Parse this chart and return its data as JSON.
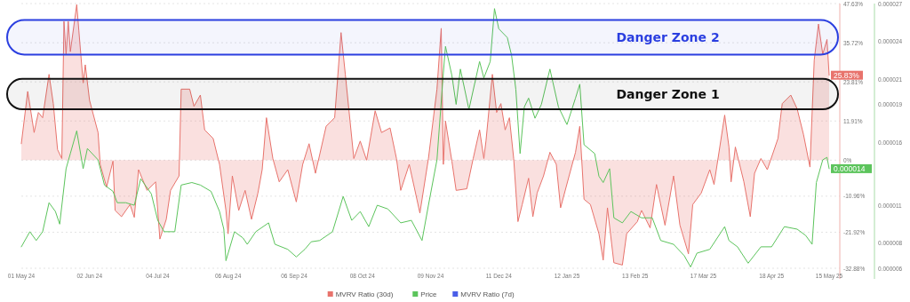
{
  "chart_data": {
    "type": "area",
    "xlim": [
      "2024-05-01",
      "2025-05-20"
    ],
    "xticks": [
      {
        "value": "2024-05-01",
        "label": "01 May 24"
      },
      {
        "value": "2024-06-02",
        "label": "02 Jun 24"
      },
      {
        "value": "2024-07-04",
        "label": "04 Jul 24"
      },
      {
        "value": "2024-08-06",
        "label": "06 Aug 24"
      },
      {
        "value": "2024-09-06",
        "label": "06 Sep 24"
      },
      {
        "value": "2024-10-08",
        "label": "08 Oct 24"
      },
      {
        "value": "2024-11-09",
        "label": "09 Nov 24"
      },
      {
        "value": "2024-12-11",
        "label": "11 Dec 24"
      },
      {
        "value": "2025-01-12",
        "label": "12 Jan 25"
      },
      {
        "value": "2025-02-13",
        "label": "13 Feb 25"
      },
      {
        "value": "2025-03-17",
        "label": "17 Mar 25"
      },
      {
        "value": "2025-04-18",
        "label": "18 Apr 25"
      },
      {
        "value": "2025-05-15",
        "label": "15 May 25"
      }
    ],
    "ylim": [
      -32.88,
      47.63
    ],
    "yticks": [
      {
        "value": 47.63,
        "label": "47.63%"
      },
      {
        "value": 35.72,
        "label": "35.72%"
      },
      {
        "value": 23.81,
        "label": "23.81%"
      },
      {
        "value": 11.91,
        "label": "11.91%"
      },
      {
        "value": 0,
        "label": "0%"
      },
      {
        "value": -10.96,
        "label": "-10.96%"
      },
      {
        "value": -21.92,
        "label": "-21.92%"
      },
      {
        "value": -32.88,
        "label": "-32.88%"
      }
    ],
    "y2lim": [
      6e-06,
      2.7e-05
    ],
    "y2ticks": [
      {
        "value": 2.7e-05,
        "label": "0.000027"
      },
      {
        "value": 2.4e-05,
        "label": "0.000024"
      },
      {
        "value": 2.1e-05,
        "label": "0.000021"
      },
      {
        "value": 1.9e-05,
        "label": "0.000019"
      },
      {
        "value": 1.6e-05,
        "label": "0.000016"
      },
      {
        "value": 1.1e-05,
        "label": "0.000011"
      },
      {
        "value": 8e-06,
        "label": "0.000008"
      },
      {
        "value": 6e-06,
        "label": "0.000006"
      }
    ],
    "grid": "y",
    "legend": "bottom",
    "bands": [
      {
        "axis": "y",
        "from": 32.1,
        "to": 42.6,
        "label": "Danger Zone 2",
        "color": "#2b3fe0"
      },
      {
        "axis": "y",
        "from": 15.5,
        "to": 24.7,
        "label": "Danger Zone 1",
        "color": "#111111"
      }
    ],
    "series": [
      {
        "name": "MVRV Ratio (30d)",
        "axis": "y",
        "color": "#e8736c",
        "x": [
          "2024-05-01",
          "2024-05-04",
          "2024-05-07",
          "2024-05-09",
          "2024-05-11",
          "2024-05-14",
          "2024-05-16",
          "2024-05-18",
          "2024-05-20",
          "2024-05-21",
          "2024-05-22",
          "2024-05-23",
          "2024-05-24",
          "2024-05-27",
          "2024-05-28",
          "2024-05-30",
          "2024-05-31",
          "2024-06-02",
          "2024-06-06",
          "2024-06-07",
          "2024-06-10",
          "2024-06-13",
          "2024-06-14",
          "2024-06-17",
          "2024-06-21",
          "2024-06-23",
          "2024-06-25",
          "2024-06-29",
          "2024-07-03",
          "2024-07-05",
          "2024-07-08",
          "2024-07-10",
          "2024-07-14",
          "2024-07-15",
          "2024-07-19",
          "2024-07-21",
          "2024-07-24",
          "2024-07-26",
          "2024-07-30",
          "2024-08-02",
          "2024-08-05",
          "2024-08-06",
          "2024-08-08",
          "2024-08-11",
          "2024-08-14",
          "2024-08-17",
          "2024-08-20",
          "2024-08-22",
          "2024-08-24",
          "2024-08-27",
          "2024-08-30",
          "2024-09-03",
          "2024-09-07",
          "2024-09-10",
          "2024-09-13",
          "2024-09-16",
          "2024-09-21",
          "2024-09-25",
          "2024-09-28",
          "2024-09-30",
          "2024-10-04",
          "2024-10-07",
          "2024-10-10",
          "2024-10-14",
          "2024-10-17",
          "2024-10-21",
          "2024-10-24",
          "2024-10-26",
          "2024-10-30",
          "2024-11-04",
          "2024-11-08",
          "2024-11-12",
          "2024-11-14",
          "2024-11-15",
          "2024-11-16",
          "2024-11-19",
          "2024-11-21",
          "2024-11-26",
          "2024-11-29",
          "2024-12-02",
          "2024-12-04",
          "2024-12-05",
          "2024-12-08",
          "2024-12-10",
          "2024-12-12",
          "2024-12-14",
          "2024-12-16",
          "2024-12-18",
          "2024-12-20",
          "2024-12-22",
          "2024-12-25",
          "2024-12-27",
          "2024-12-29",
          "2025-01-01",
          "2025-01-04",
          "2025-01-07",
          "2025-01-09",
          "2025-01-13",
          "2025-01-16",
          "2025-01-18",
          "2025-01-20",
          "2025-01-23",
          "2025-01-27",
          "2025-01-29",
          "2025-01-31",
          "2025-02-03",
          "2025-02-07",
          "2025-02-09",
          "2025-02-14",
          "2025-02-16",
          "2025-02-20",
          "2025-02-23",
          "2025-02-27",
          "2025-03-03",
          "2025-03-06",
          "2025-03-10",
          "2025-03-12",
          "2025-03-16",
          "2025-03-20",
          "2025-03-22",
          "2025-03-27",
          "2025-03-29",
          "2025-03-30",
          "2025-04-01",
          "2025-04-05",
          "2025-04-08",
          "2025-04-10",
          "2025-04-13",
          "2025-04-16",
          "2025-04-21",
          "2025-04-23",
          "2025-04-27",
          "2025-04-30",
          "2025-05-03",
          "2025-05-06",
          "2025-05-08",
          "2025-05-10",
          "2025-05-12",
          "2025-05-14",
          "2025-05-15"
        ],
        "values": [
          5.0,
          20.9,
          8.4,
          14.5,
          12.9,
          26.1,
          17.2,
          3.2,
          0.5,
          42.2,
          32.2,
          42.2,
          33.0,
          47.3,
          39.3,
          23.5,
          29.0,
          18.2,
          8.4,
          -1.3,
          -8.2,
          -0.3,
          -15.3,
          -17.2,
          -13.5,
          -17.4,
          -2.9,
          -9.2,
          -6.6,
          -24.0,
          -18.0,
          -9.2,
          -4.8,
          21.6,
          21.6,
          16.4,
          19.8,
          9.2,
          6.6,
          -1.3,
          -15.3,
          -22.4,
          -4.8,
          -15.3,
          -9.2,
          -18.0,
          -10.0,
          -2.9,
          12.9,
          0.5,
          -6.6,
          -2.9,
          -12.7,
          -1.3,
          5.0,
          -4.0,
          10.3,
          12.9,
          38.8,
          26.1,
          0.5,
          5.8,
          0,
          15.0,
          8.4,
          9.8,
          0.5,
          -9.2,
          -1.3,
          -16.1,
          0.5,
          21.6,
          40.1,
          -1.3,
          11.9,
          -0.3,
          -9.2,
          -8.7,
          0.5,
          9.2,
          0.5,
          5.8,
          26.1,
          14.5,
          17.2,
          9.2,
          12.9,
          0.5,
          -18.7,
          -13.5,
          -5.5,
          -17.2,
          -10.0,
          -4.8,
          2.4,
          -1.3,
          -14.5,
          -4.8,
          2.4,
          10.3,
          -11.9,
          -13.5,
          -22.4,
          -30.4,
          -14.5,
          -31.2,
          -31.9,
          -22.4,
          -18.7,
          -15.3,
          -20.6,
          -7.4,
          -19.8,
          -4.8,
          -19.8,
          -28.5,
          -13.5,
          -10.0,
          -2.9,
          -7.4,
          13.7,
          4.0,
          -6.6,
          4.0,
          -6.6,
          -17.2,
          -4.0,
          0.5,
          -2.9,
          6.6,
          17.2,
          19.8,
          15.6,
          7.7,
          -2.1,
          30.4,
          41.4,
          32.2,
          36.7,
          25.83
        ],
        "value_labels": [
          null,
          null,
          null,
          null,
          null,
          null,
          null,
          null,
          null,
          null,
          null,
          null,
          null,
          null,
          null,
          null,
          null,
          null,
          null,
          null,
          null,
          null,
          null,
          null,
          null,
          null,
          null,
          null,
          null,
          null,
          null,
          null,
          null,
          null,
          null,
          null,
          null,
          null,
          null,
          null,
          null,
          null,
          null,
          null,
          null,
          null,
          null,
          null,
          null,
          null,
          null,
          null,
          null,
          null,
          null,
          null,
          null,
          null,
          null,
          null,
          null,
          null,
          null,
          null,
          null,
          null,
          null,
          null,
          null,
          null,
          null,
          null,
          null,
          null,
          null,
          null,
          null,
          null,
          null,
          null,
          null,
          null,
          null,
          null,
          null,
          null,
          null,
          null,
          null,
          null,
          null,
          null,
          null,
          null,
          null,
          null,
          null,
          null,
          null,
          null,
          null,
          null,
          null,
          null,
          null,
          null,
          null,
          null,
          null,
          null,
          null,
          null,
          null,
          null,
          null,
          null,
          null,
          null,
          null,
          null,
          null,
          null,
          null,
          null,
          null,
          null,
          null,
          null,
          null,
          null,
          null,
          null,
          null,
          null,
          null,
          null,
          null,
          null,
          null,
          "25.83%"
        ]
      },
      {
        "name": "Price",
        "type": "line",
        "axis": "y2",
        "color": "#5cc45c",
        "x": [
          "2024-05-01",
          "2024-05-05",
          "2024-05-08",
          "2024-05-11",
          "2024-05-14",
          "2024-05-17",
          "2024-05-19",
          "2024-05-22",
          "2024-05-24",
          "2024-05-27",
          "2024-05-30",
          "2024-06-01",
          "2024-06-06",
          "2024-06-09",
          "2024-06-13",
          "2024-06-15",
          "2024-06-19",
          "2024-06-23",
          "2024-06-26",
          "2024-07-01",
          "2024-07-04",
          "2024-07-07",
          "2024-07-12",
          "2024-07-15",
          "2024-07-20",
          "2024-07-24",
          "2024-07-29",
          "2024-08-02",
          "2024-08-04",
          "2024-08-05",
          "2024-08-09",
          "2024-08-13",
          "2024-08-15",
          "2024-08-19",
          "2024-08-25",
          "2024-08-28",
          "2024-09-03",
          "2024-09-07",
          "2024-09-11",
          "2024-09-14",
          "2024-09-18",
          "2024-09-24",
          "2024-09-29",
          "2024-10-03",
          "2024-10-07",
          "2024-10-11",
          "2024-10-15",
          "2024-10-20",
          "2024-10-26",
          "2024-10-31",
          "2024-11-05",
          "2024-11-08",
          "2024-11-12",
          "2024-11-15",
          "2024-11-16",
          "2024-11-19",
          "2024-11-21",
          "2024-11-23",
          "2024-11-27",
          "2024-12-02",
          "2024-12-04",
          "2024-12-07",
          "2024-12-09",
          "2024-12-11",
          "2024-12-15",
          "2024-12-17",
          "2024-12-19",
          "2024-12-21",
          "2024-12-23",
          "2024-12-25",
          "2024-12-28",
          "2024-12-31",
          "2025-01-04",
          "2025-01-08",
          "2025-01-12",
          "2025-01-16",
          "2025-01-18",
          "2025-01-20",
          "2025-01-25",
          "2025-01-27",
          "2025-01-29",
          "2025-02-01",
          "2025-02-03",
          "2025-02-07",
          "2025-02-11",
          "2025-02-16",
          "2025-02-21",
          "2025-02-25",
          "2025-03-03",
          "2025-03-08",
          "2025-03-11",
          "2025-03-14",
          "2025-03-20",
          "2025-03-27",
          "2025-03-29",
          "2025-04-02",
          "2025-04-07",
          "2025-04-13",
          "2025-04-18",
          "2025-04-24",
          "2025-04-30",
          "2025-05-04",
          "2025-05-07",
          "2025-05-09",
          "2025-05-12",
          "2025-05-14",
          "2025-05-15"
        ],
        "values": [
          7.7e-06,
          8.9e-06,
          8.2e-06,
          8.9e-06,
          1.12e-05,
          1.05e-05,
          9.5e-06,
          1.39e-05,
          1.51e-05,
          1.69e-05,
          1.39e-05,
          1.55e-05,
          1.46e-05,
          1.26e-05,
          1.21e-05,
          1.12e-05,
          1.12e-05,
          1.1e-05,
          1.31e-05,
          1.19e-05,
          9.8e-06,
          8.9e-06,
          8.9e-06,
          1.26e-05,
          1.28e-05,
          1.26e-05,
          1.21e-05,
          1.05e-05,
          9.1e-06,
          6.6e-06,
          8.9e-06,
          8.4e-06,
          7.9e-06,
          8.9e-06,
          9.6e-06,
          7.9e-06,
          7.5e-06,
          6.9e-06,
          7.5e-06,
          8.1e-06,
          8.2e-06,
          8.9e-06,
          1.17e-05,
          9.8e-06,
          1.05e-05,
          9.3e-06,
          1.1e-05,
          1.07e-05,
          9.6e-06,
          9.8e-06,
          8.2e-06,
          1.1e-05,
          1.46e-05,
          2.15e-05,
          2.36e-05,
          2.13e-05,
          1.9e-05,
          2.18e-05,
          1.86e-05,
          2.24e-05,
          2.11e-05,
          2.24e-05,
          2.66e-05,
          2.5e-05,
          2.43e-05,
          2.29e-05,
          2.02e-05,
          1.51e-05,
          1.88e-05,
          1.95e-05,
          1.79e-05,
          1.9e-05,
          2.18e-05,
          1.88e-05,
          1.74e-05,
          1.95e-05,
          2.06e-05,
          1.58e-05,
          1.51e-05,
          1.33e-05,
          1.28e-05,
          1.39e-05,
          1e-05,
          9.6e-06,
          1.05e-05,
          1e-05,
          1e-05,
          8.2e-06,
          7.9e-06,
          7e-06,
          6.1e-06,
          7.2e-06,
          7.5e-06,
          9.3e-06,
          8.2e-06,
          7.7e-06,
          6.4e-06,
          7.7e-06,
          7.7e-06,
          9.3e-06,
          9.1e-06,
          8.6e-06,
          7.9e-06,
          1.28e-05,
          1.46e-05,
          1.48e-05,
          1.39e-05
        ],
        "value_labels": [
          null,
          null,
          null,
          null,
          null,
          null,
          null,
          null,
          null,
          null,
          null,
          null,
          null,
          null,
          null,
          null,
          null,
          null,
          null,
          null,
          null,
          null,
          null,
          null,
          null,
          null,
          null,
          null,
          null,
          null,
          null,
          null,
          null,
          null,
          null,
          null,
          null,
          null,
          null,
          null,
          null,
          null,
          null,
          null,
          null,
          null,
          null,
          null,
          null,
          null,
          null,
          null,
          null,
          null,
          null,
          null,
          null,
          null,
          null,
          null,
          null,
          null,
          null,
          null,
          null,
          null,
          null,
          null,
          null,
          null,
          null,
          null,
          null,
          null,
          null,
          null,
          null,
          null,
          null,
          null,
          null,
          null,
          null,
          null,
          null,
          null,
          null,
          null,
          null,
          null,
          null,
          null,
          null,
          null,
          null,
          null,
          null,
          null,
          null,
          null,
          null,
          null,
          null,
          null,
          null,
          null,
          "0.000014"
        ]
      },
      {
        "name": "MVRV Ratio (7d)",
        "type": "line",
        "axis": "y",
        "color": "#4a5ee8"
      }
    ]
  }
}
